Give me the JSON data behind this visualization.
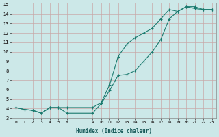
{
  "title": "",
  "xlabel": "Humidex (Indice chaleur)",
  "ylabel": "",
  "bg_color": "#cce8e8",
  "grid_color": "#c8a8a8",
  "line_color": "#1a7a6e",
  "xlim": [
    -0.5,
    23.5
  ],
  "ylim": [
    3,
    15.2
  ],
  "xticks": [
    0,
    1,
    2,
    3,
    4,
    5,
    6,
    9,
    10,
    11,
    12,
    13,
    14,
    15,
    16,
    17,
    18,
    19,
    20,
    21,
    22,
    23
  ],
  "yticks": [
    3,
    4,
    5,
    6,
    7,
    8,
    9,
    10,
    11,
    12,
    13,
    14,
    15
  ],
  "line1_x": [
    0,
    1,
    2,
    3,
    4,
    5,
    6,
    9,
    10,
    11,
    12,
    13,
    14,
    15,
    16,
    17,
    18,
    19,
    20,
    21,
    22,
    23
  ],
  "line1_y": [
    4.1,
    3.9,
    3.8,
    3.5,
    4.1,
    4.1,
    3.5,
    3.5,
    4.5,
    5.9,
    7.5,
    7.6,
    8.0,
    9.0,
    10.0,
    11.3,
    13.5,
    14.3,
    14.8,
    14.6,
    14.5,
    14.5
  ],
  "line2_x": [
    0,
    1,
    2,
    3,
    4,
    5,
    6,
    9,
    10,
    11,
    12,
    13,
    14,
    15,
    16,
    17,
    18,
    19,
    20,
    21,
    22,
    23
  ],
  "line2_y": [
    4.1,
    3.9,
    3.8,
    3.5,
    4.1,
    4.1,
    4.1,
    4.1,
    4.6,
    6.5,
    9.5,
    10.8,
    11.5,
    12.0,
    12.5,
    13.5,
    14.5,
    14.3,
    14.8,
    14.8,
    14.5,
    14.5
  ]
}
